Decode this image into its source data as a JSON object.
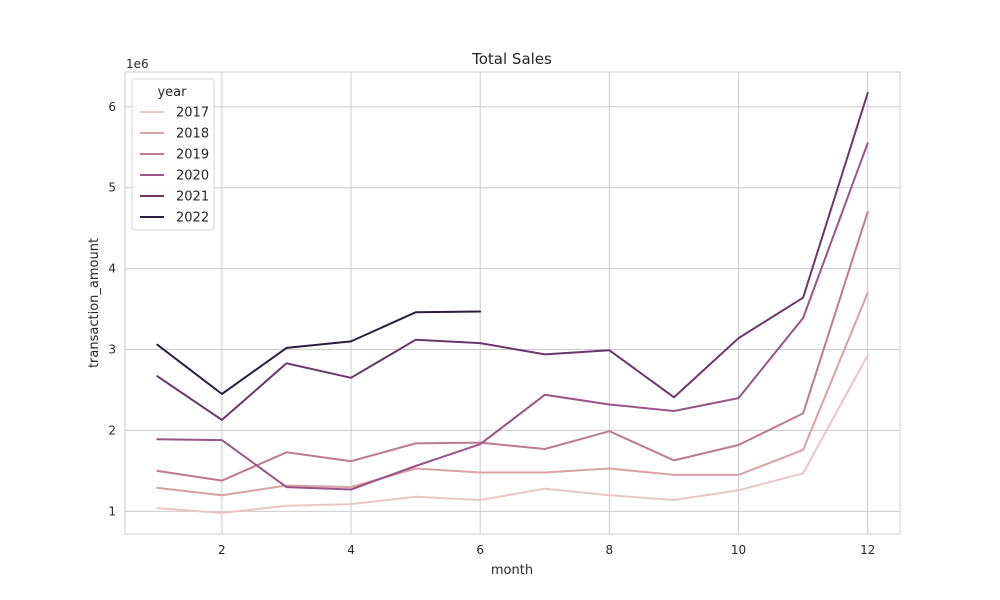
{
  "chart_data": {
    "type": "line",
    "title": "Total Sales",
    "xlabel": "month",
    "ylabel": "transaction_amount",
    "y_scale_label": "1e6",
    "xlim": [
      0.5,
      12.5
    ],
    "ylim": [
      720000,
      6430000
    ],
    "x_ticks": [
      2,
      4,
      6,
      8,
      10,
      12
    ],
    "y_ticks": [
      1000000,
      2000000,
      3000000,
      4000000,
      5000000,
      6000000
    ],
    "y_tick_labels": [
      "1",
      "2",
      "3",
      "4",
      "5",
      "6"
    ],
    "grid": true,
    "legend": {
      "title": "year",
      "placement": "top-left"
    },
    "series": [
      {
        "name": "2017",
        "color": "#e8c6c3",
        "x": [
          1,
          2,
          3,
          4,
          5,
          6,
          7,
          8,
          9,
          10,
          11,
          12
        ],
        "values": [
          1040000,
          980000,
          1070000,
          1090000,
          1180000,
          1140000,
          1280000,
          1200000,
          1140000,
          1260000,
          1470000,
          2930000
        ]
      },
      {
        "name": "2018",
        "color": "#d9a0a6",
        "x": [
          1,
          2,
          3,
          4,
          5,
          6,
          7,
          8,
          9,
          10,
          11,
          12
        ],
        "values": [
          1290000,
          1200000,
          1320000,
          1300000,
          1530000,
          1480000,
          1480000,
          1530000,
          1450000,
          1450000,
          1760000,
          3700000
        ]
      },
      {
        "name": "2019",
        "color": "#bd7a92",
        "x": [
          1,
          2,
          3,
          4,
          5,
          6,
          7,
          8,
          9,
          10,
          11,
          12
        ],
        "values": [
          1500000,
          1380000,
          1730000,
          1620000,
          1840000,
          1850000,
          1770000,
          1990000,
          1630000,
          1820000,
          2210000,
          4700000
        ]
      },
      {
        "name": "2020",
        "color": "#995585",
        "x": [
          1,
          2,
          3,
          4,
          5,
          6,
          7,
          8,
          9,
          10,
          11,
          12
        ],
        "values": [
          1890000,
          1880000,
          1300000,
          1270000,
          1560000,
          1830000,
          2440000,
          2320000,
          2240000,
          2400000,
          3390000,
          5550000
        ]
      },
      {
        "name": "2021",
        "color": "#6b3769",
        "x": [
          1,
          2,
          3,
          4,
          5,
          6,
          7,
          8,
          9,
          10,
          11,
          12
        ],
        "values": [
          2670000,
          2130000,
          2830000,
          2650000,
          3120000,
          3080000,
          2940000,
          2990000,
          2410000,
          3140000,
          3640000,
          6170000
        ]
      },
      {
        "name": "2022",
        "color": "#2d1e3e",
        "x": [
          1,
          2,
          3,
          4,
          5,
          6
        ],
        "values": [
          3060000,
          2450000,
          3020000,
          3100000,
          3460000,
          3470000
        ]
      }
    ]
  }
}
